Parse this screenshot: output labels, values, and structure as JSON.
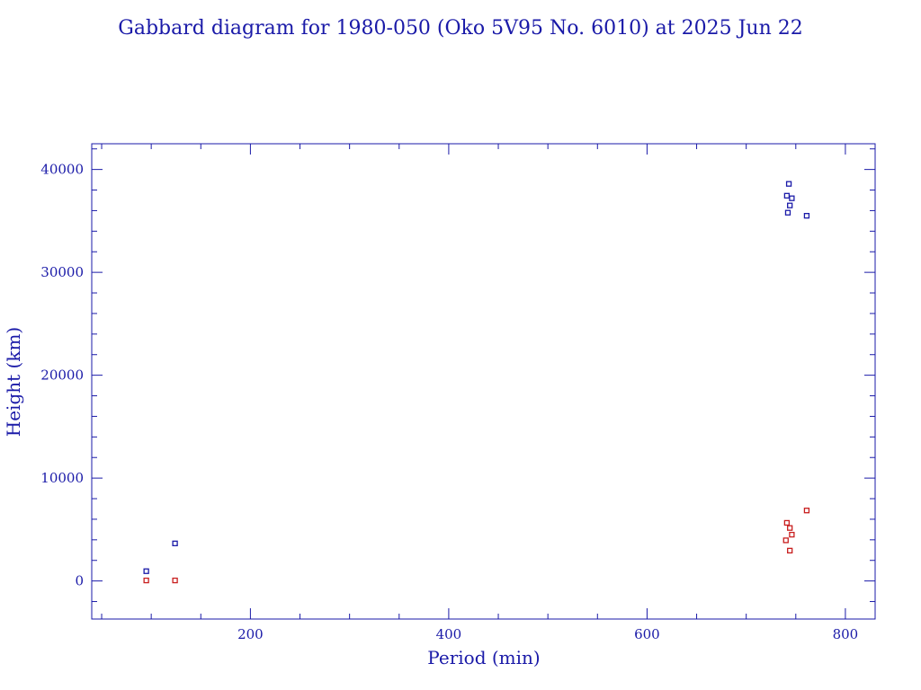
{
  "chart_data": {
    "type": "scatter",
    "title": "Gabbard diagram for 1980-050 (Oko 5V95 No. 6010) at 2025 Jun 22",
    "xlabel": "Period (min)",
    "ylabel": "Height (km)",
    "xlim": [
      40,
      830
    ],
    "ylim": [
      -3700,
      42500
    ],
    "x_ticks": [
      200,
      400,
      600,
      800
    ],
    "y_ticks": [
      0,
      10000,
      20000,
      30000,
      40000
    ],
    "x_minor_step": 50,
    "y_minor_step": 2000,
    "grid": false,
    "legend": "none",
    "series": [
      {
        "color": "#1a1aa8",
        "points": [
          [
            95,
            950
          ],
          [
            124,
            3650
          ],
          [
            743,
            38600
          ],
          [
            741,
            37450
          ],
          [
            746,
            37200
          ],
          [
            744,
            36500
          ],
          [
            742,
            35800
          ],
          [
            761,
            35500
          ]
        ]
      },
      {
        "color": "#c81e1e",
        "points": [
          [
            95,
            50
          ],
          [
            124,
            50
          ],
          [
            741,
            5650
          ],
          [
            744,
            5150
          ],
          [
            746,
            4500
          ],
          [
            740,
            3950
          ],
          [
            744,
            2950
          ],
          [
            761,
            6850
          ]
        ]
      }
    ]
  }
}
